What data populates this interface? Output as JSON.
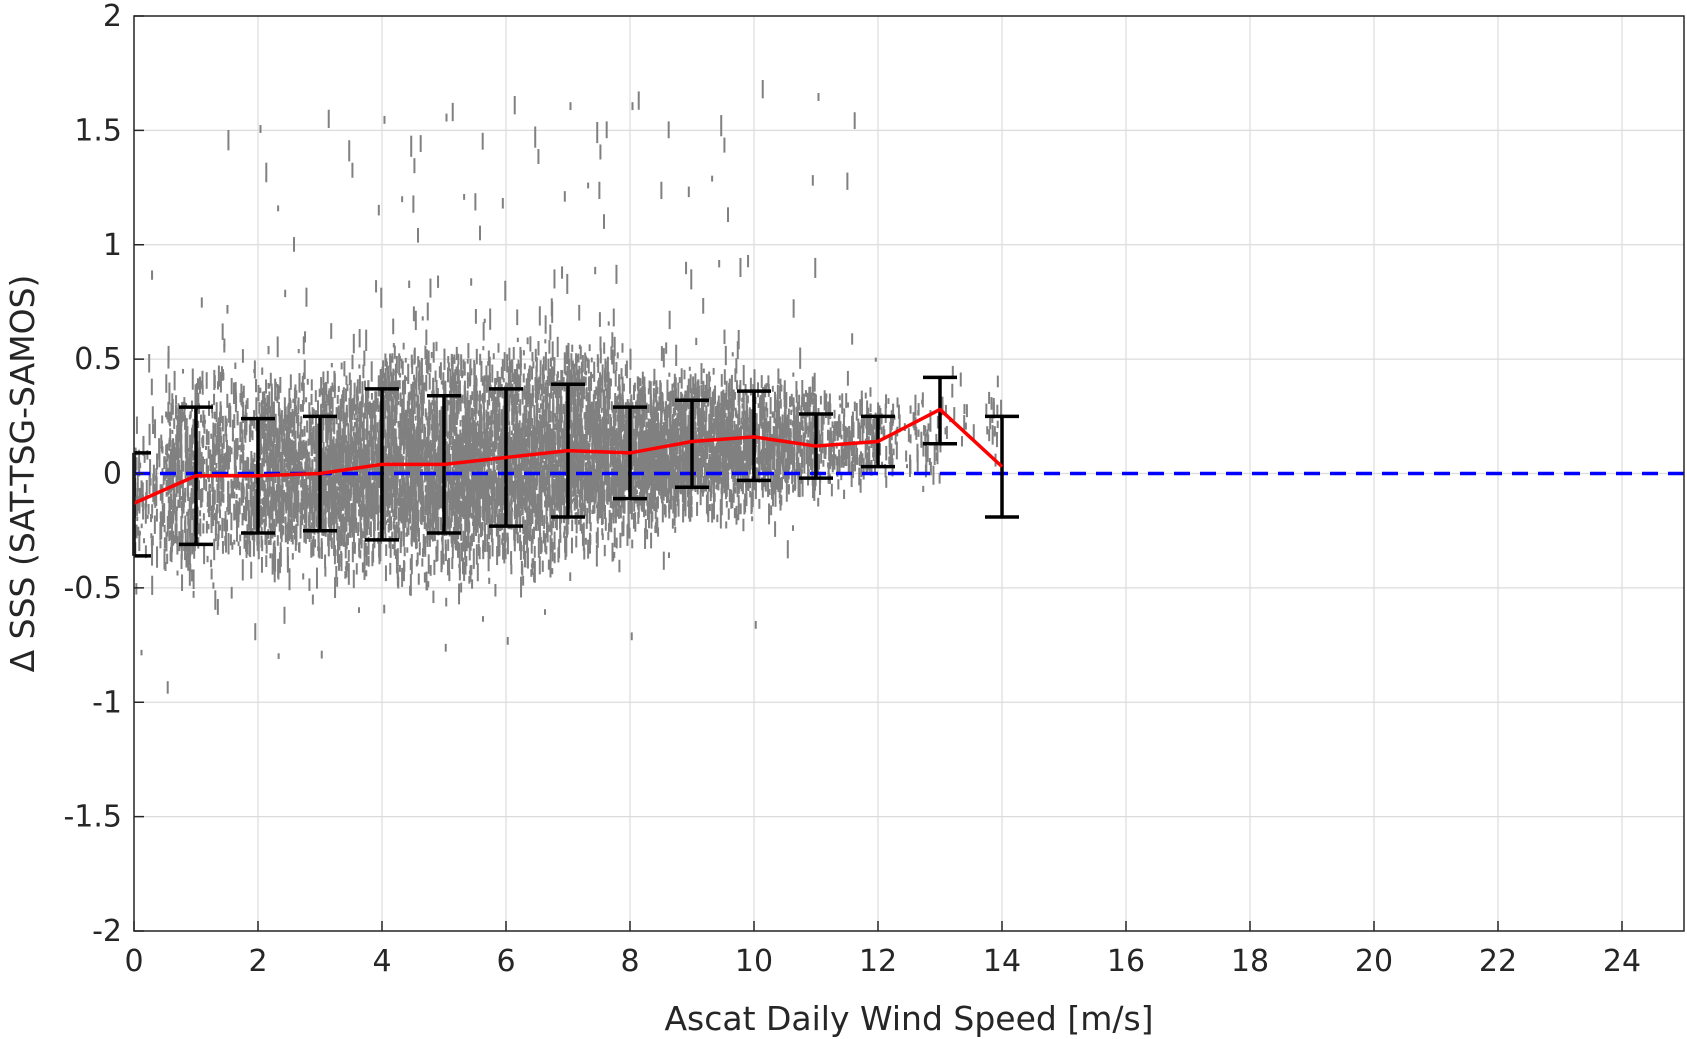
{
  "chart_data": {
    "type": "scatter",
    "xlabel": "Ascat Daily Wind Speed [m/s]",
    "ylabel": "Δ SSS (SAT-TSG-SAMOS)",
    "xlim": [
      0,
      25
    ],
    "ylim": [
      -2,
      2
    ],
    "xticks": [
      0,
      2,
      4,
      6,
      8,
      10,
      12,
      14,
      16,
      18,
      20,
      22,
      24
    ],
    "yticks": [
      -2,
      -1.5,
      -1,
      -0.5,
      0,
      0.5,
      1,
      1.5,
      2
    ],
    "grid": true,
    "colors": {
      "scatter": "#808080",
      "mean_line": "#ff0000",
      "error_bars": "#000000",
      "zero_line": "#0000ff"
    },
    "reference_line": {
      "y": 0,
      "style": "dashed"
    },
    "series": [
      {
        "kind": "binned_mean_with_error_bars",
        "x": [
          0,
          1,
          2,
          3,
          4,
          5,
          6,
          7,
          8,
          9,
          10,
          11,
          12,
          13,
          14
        ],
        "mean": [
          -0.13,
          -0.01,
          -0.01,
          0.0,
          0.04,
          0.04,
          0.07,
          0.1,
          0.09,
          0.14,
          0.16,
          0.12,
          0.14,
          0.28,
          0.03
        ],
        "lower": [
          -0.36,
          -0.31,
          -0.26,
          -0.25,
          -0.29,
          -0.26,
          -0.23,
          -0.19,
          -0.11,
          -0.06,
          -0.03,
          -0.02,
          0.03,
          0.13,
          -0.19
        ],
        "upper": [
          0.09,
          0.29,
          0.24,
          0.25,
          0.37,
          0.34,
          0.37,
          0.39,
          0.29,
          0.32,
          0.36,
          0.26,
          0.25,
          0.42,
          0.25
        ]
      }
    ],
    "scatter_cloud": [
      {
        "x_min": 0,
        "x_max": 1,
        "center": -0.1,
        "spread": 0.22,
        "count": 200
      },
      {
        "x_min": 0.5,
        "x_max": 2,
        "center": 0.0,
        "spread": 0.28,
        "count": 650
      },
      {
        "x_min": 2,
        "x_max": 3,
        "center": 0.0,
        "spread": 0.26,
        "count": 750
      },
      {
        "x_min": 3,
        "x_max": 4,
        "center": 0.02,
        "spread": 0.27,
        "count": 900
      },
      {
        "x_min": 4,
        "x_max": 5,
        "center": 0.04,
        "spread": 0.31,
        "count": 1000
      },
      {
        "x_min": 5,
        "x_max": 6,
        "center": 0.05,
        "spread": 0.3,
        "count": 1000
      },
      {
        "x_min": 6,
        "x_max": 7,
        "center": 0.08,
        "spread": 0.3,
        "count": 1000
      },
      {
        "x_min": 7,
        "x_max": 8,
        "center": 0.1,
        "spread": 0.27,
        "count": 950
      },
      {
        "x_min": 8,
        "x_max": 9,
        "center": 0.1,
        "spread": 0.2,
        "count": 850
      },
      {
        "x_min": 9,
        "x_max": 10,
        "center": 0.13,
        "spread": 0.19,
        "count": 700
      },
      {
        "x_min": 10,
        "x_max": 11,
        "center": 0.15,
        "spread": 0.17,
        "count": 450
      },
      {
        "x_min": 11,
        "x_max": 12,
        "center": 0.14,
        "spread": 0.13,
        "count": 220
      },
      {
        "x_min": 12,
        "x_max": 13,
        "center": 0.14,
        "spread": 0.12,
        "count": 90
      },
      {
        "x_min": 13,
        "x_max": 14,
        "center": 0.22,
        "spread": 0.14,
        "count": 35
      }
    ]
  }
}
